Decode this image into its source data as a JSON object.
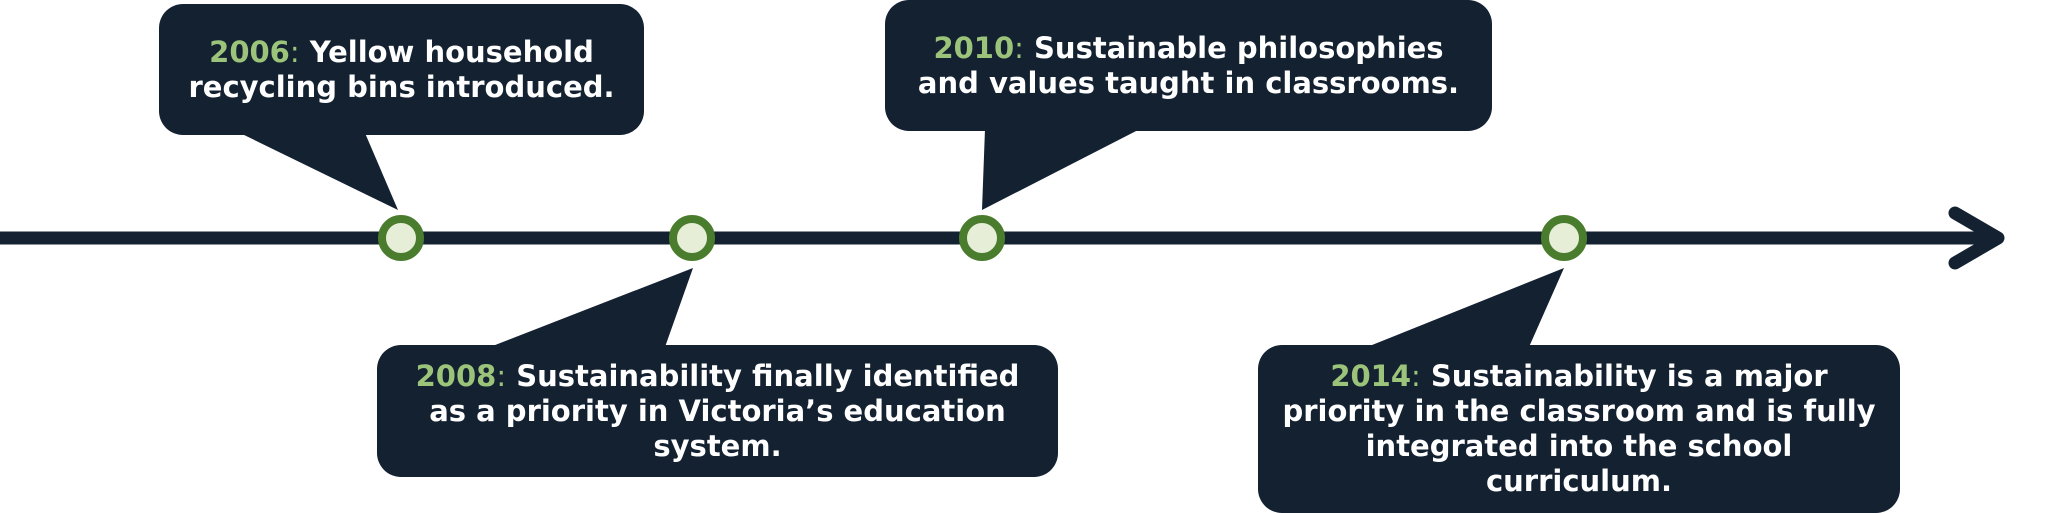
{
  "timeline": {
    "line_color": "#132131",
    "node_outer_color": "#4a7c2e",
    "node_inner_color": "#e6eed8",
    "year_color": "#9bc47a",
    "box_color": "#132131"
  },
  "events": [
    {
      "year": "2006",
      "text": "Yellow household recycling bins introduced."
    },
    {
      "year": "2008",
      "text": "Sustainability finally identified as a priority in Victoria’s education system."
    },
    {
      "year": "2010",
      "text": "Sustainable philosophies and values taught in classrooms."
    },
    {
      "year": "2014",
      "text": "Sustainability is a major priority in the classroom and is fully integrated into the school curriculum."
    }
  ]
}
